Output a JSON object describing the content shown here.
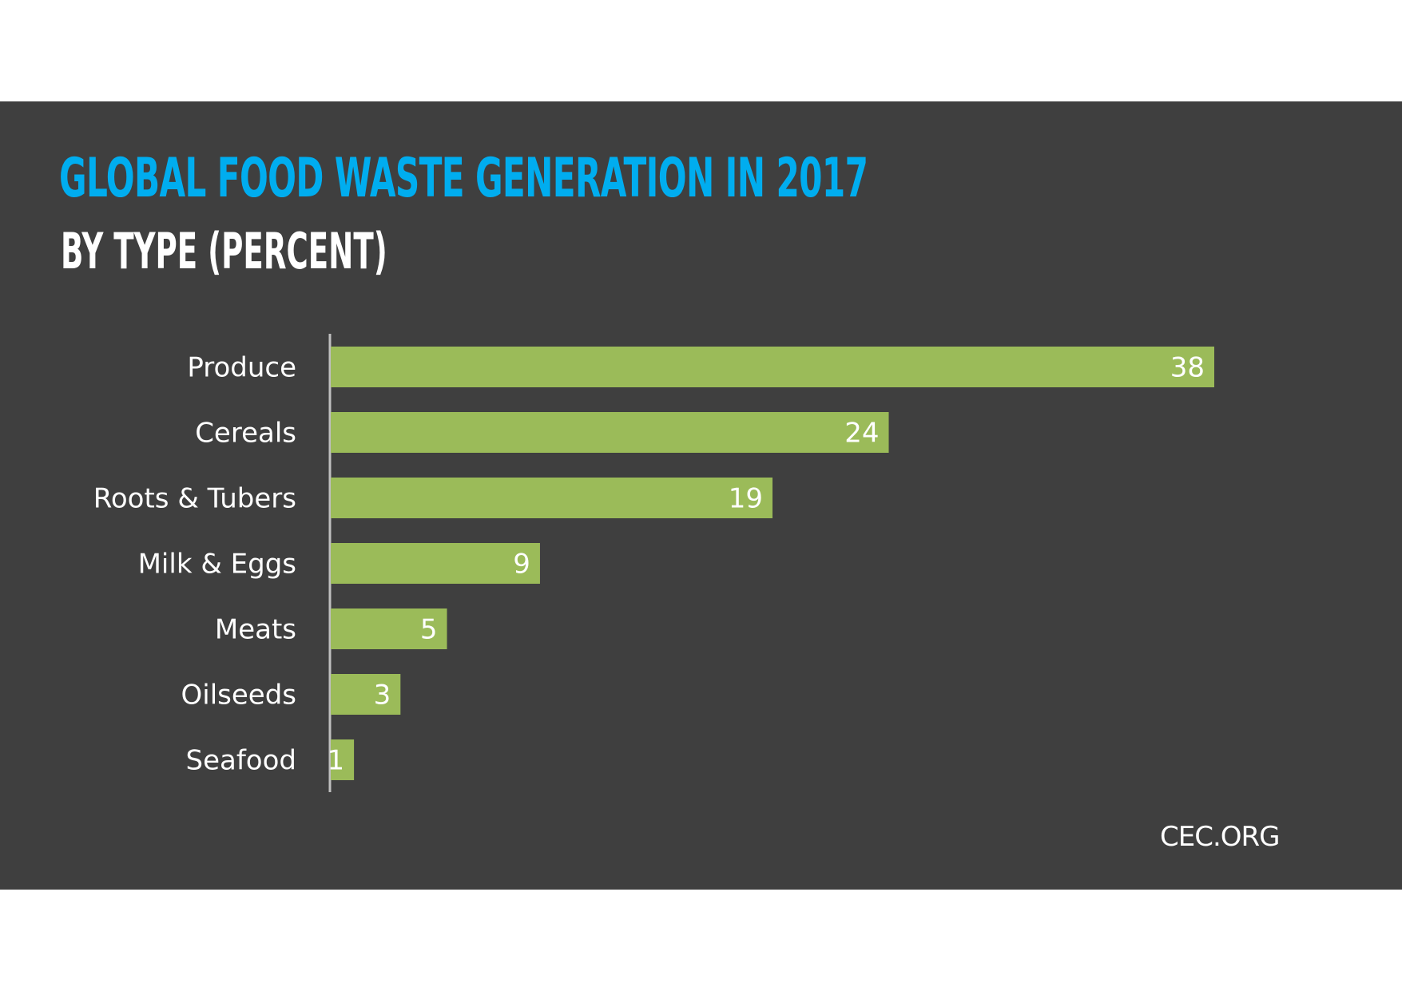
{
  "chart_data": {
    "type": "bar",
    "orientation": "horizontal",
    "title": "GLOBAL FOOD WASTE GENERATION IN 2017",
    "subtitle": "BY TYPE (PERCENT)",
    "xlabel": "",
    "ylabel": "",
    "categories": [
      "Produce",
      "Cereals",
      "Roots & Tubers",
      "Milk & Eggs",
      "Meats",
      "Oilseeds",
      "Seafood"
    ],
    "values": [
      38,
      24,
      19,
      9,
      5,
      3,
      1
    ],
    "xlim": [
      0,
      40
    ],
    "grid": false,
    "data_labels": true,
    "legend": "none",
    "colors": {
      "bar": "#9bbb59",
      "title": "#00adef",
      "background": "#3f3f3f",
      "axis": "#bfbfbf"
    }
  },
  "footer": {
    "source": "CEC.ORG"
  }
}
